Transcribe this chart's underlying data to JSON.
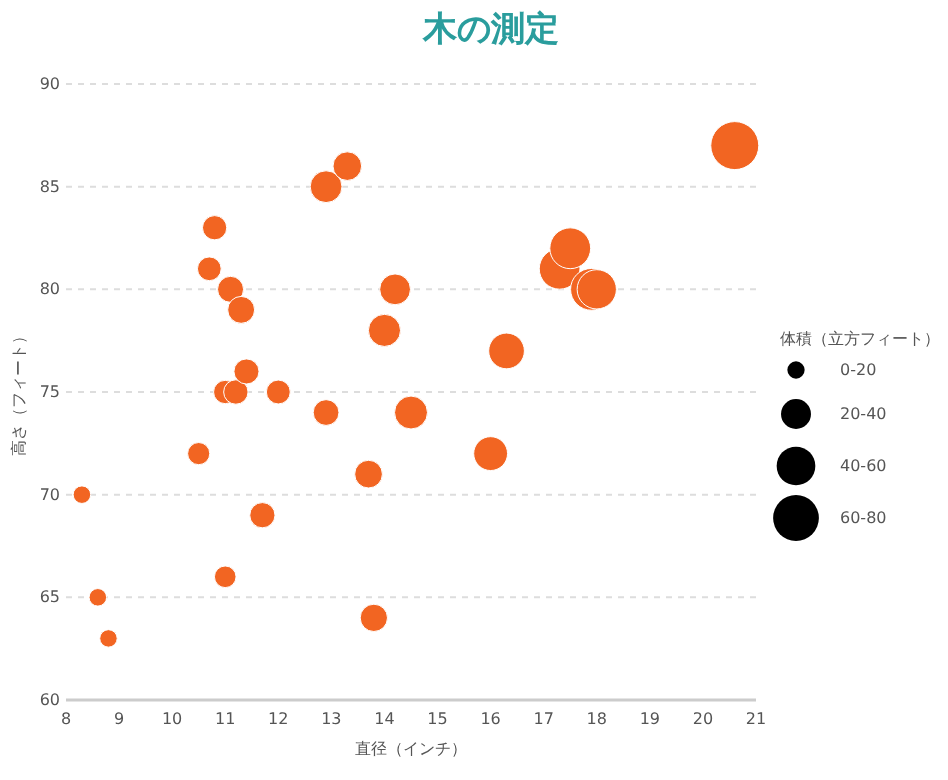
{
  "chart_data": {
    "type": "bubble",
    "title": "木の測定",
    "xlabel": "直径（インチ）",
    "ylabel": "高さ（フィート）",
    "legend_title": "体積（立方フィート）",
    "xlim": [
      8,
      21
    ],
    "xticks": [
      8,
      9,
      10,
      11,
      12,
      13,
      14,
      15,
      16,
      17,
      18,
      19,
      20,
      21
    ],
    "ylim": [
      60,
      90
    ],
    "yticks": [
      60,
      65,
      70,
      75,
      80,
      85,
      90
    ],
    "grid": "y",
    "size_legend": [
      {
        "value": 10,
        "label": "0-20"
      },
      {
        "value": 30,
        "label": "20-40"
      },
      {
        "value": 50,
        "label": "40-60"
      },
      {
        "value": 70,
        "label": "60-80"
      }
    ],
    "series": [
      {
        "color": "#f26522",
        "x": [
          8.3,
          8.6,
          8.8,
          10.5,
          10.7,
          10.8,
          11.0,
          11.0,
          11.1,
          11.2,
          11.3,
          11.4,
          11.7,
          12.0,
          12.9,
          12.9,
          13.3,
          13.7,
          13.8,
          14.0,
          14.2,
          14.5,
          16.0,
          16.3,
          17.3,
          17.5,
          17.9,
          18.0,
          20.6
        ],
        "values": [
          70,
          65,
          63,
          72,
          81,
          83,
          66,
          75,
          80,
          75,
          79,
          76,
          69,
          75,
          74,
          85,
          86,
          71,
          64,
          78,
          80,
          74,
          72,
          77,
          81,
          82,
          80,
          80,
          87
        ],
        "sizes": [
          10.3,
          10.3,
          10.2,
          16.4,
          18.8,
          19.7,
          15.6,
          18.2,
          22.6,
          19.9,
          24.2,
          21.0,
          21.3,
          19.1,
          22.2,
          33.8,
          27.4,
          25.7,
          24.9,
          34.5,
          31.7,
          36.3,
          38.3,
          42.6,
          55.4,
          55.7,
          58.3,
          51.5,
          77.0
        ]
      }
    ]
  }
}
